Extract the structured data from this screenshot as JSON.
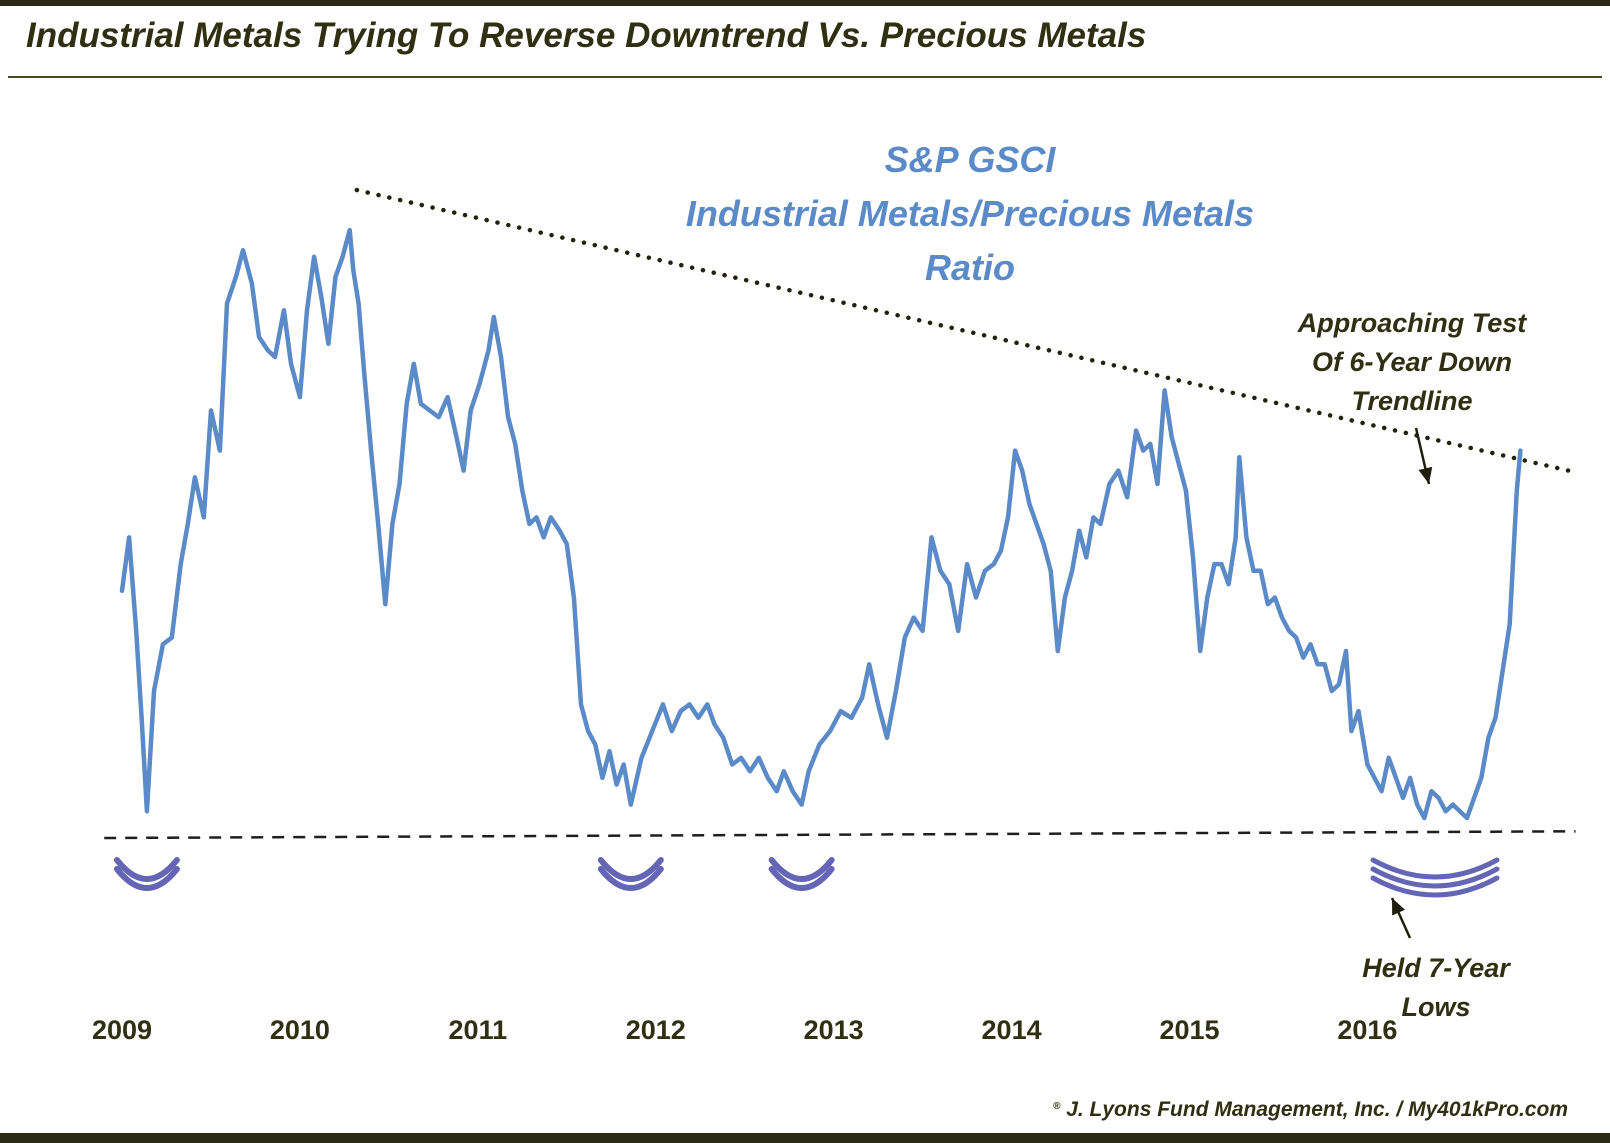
{
  "title": "Industrial Metals Trying To Reverse Downtrend Vs. Precious Metals",
  "credit": {
    "mark": "®",
    "text": "J. Lyons Fund Management, Inc. / My401kPro.com"
  },
  "colors": {
    "line": "#5b8ac8",
    "text": "#2f2f12",
    "arc": "#4a4aa8",
    "border": "#2a2a14"
  },
  "chart_data": {
    "type": "line",
    "title": "S&P GSCI Industrial Metals/Precious Metals Ratio",
    "title_lines": [
      "S&P GSCI",
      "Industrial Metals/Precious Metals",
      "Ratio"
    ],
    "xlabel": "",
    "ylabel": "",
    "x_ticks": [
      "2009",
      "2010",
      "2011",
      "2012",
      "2013",
      "2014",
      "2015",
      "2016"
    ],
    "x_range": [
      2009.0,
      2017.15
    ],
    "y_range": [
      0,
      100
    ],
    "grid": false,
    "series": [
      {
        "name": "Industrial Metals/Precious Metals Ratio",
        "points": [
          [
            2009.0,
            37.0
          ],
          [
            2009.04,
            45.0
          ],
          [
            2009.08,
            31.0
          ],
          [
            2009.11,
            18.0
          ],
          [
            2009.14,
            4.0
          ],
          [
            2009.18,
            22.0
          ],
          [
            2009.23,
            29.0
          ],
          [
            2009.28,
            30.0
          ],
          [
            2009.33,
            41.0
          ],
          [
            2009.37,
            47.0
          ],
          [
            2009.41,
            54.0
          ],
          [
            2009.46,
            48.0
          ],
          [
            2009.5,
            64.0
          ],
          [
            2009.55,
            58.0
          ],
          [
            2009.59,
            80.0
          ],
          [
            2009.64,
            84.0
          ],
          [
            2009.68,
            88.0
          ],
          [
            2009.73,
            83.0
          ],
          [
            2009.77,
            75.0
          ],
          [
            2009.82,
            73.0
          ],
          [
            2009.86,
            72.0
          ],
          [
            2009.91,
            79.0
          ],
          [
            2009.95,
            71.0
          ],
          [
            2010.0,
            66.0
          ],
          [
            2010.04,
            79.0
          ],
          [
            2010.08,
            87.0
          ],
          [
            2010.12,
            81.0
          ],
          [
            2010.16,
            74.0
          ],
          [
            2010.2,
            84.0
          ],
          [
            2010.24,
            87.0
          ],
          [
            2010.28,
            91.0
          ],
          [
            2010.3,
            85.0
          ],
          [
            2010.33,
            80.0
          ],
          [
            2010.36,
            70.0
          ],
          [
            2010.4,
            58.0
          ],
          [
            2010.44,
            47.0
          ],
          [
            2010.48,
            35.0
          ],
          [
            2010.52,
            47.0
          ],
          [
            2010.56,
            53.0
          ],
          [
            2010.6,
            65.0
          ],
          [
            2010.64,
            71.0
          ],
          [
            2010.68,
            65.0
          ],
          [
            2010.73,
            64.0
          ],
          [
            2010.78,
            63.0
          ],
          [
            2010.83,
            66.0
          ],
          [
            2010.88,
            60.0
          ],
          [
            2010.92,
            55.0
          ],
          [
            2010.96,
            64.0
          ],
          [
            2011.01,
            68.0
          ],
          [
            2011.06,
            73.0
          ],
          [
            2011.09,
            78.0
          ],
          [
            2011.13,
            72.0
          ],
          [
            2011.17,
            63.0
          ],
          [
            2011.21,
            59.0
          ],
          [
            2011.25,
            52.0
          ],
          [
            2011.29,
            47.0
          ],
          [
            2011.33,
            48.0
          ],
          [
            2011.37,
            45.0
          ],
          [
            2011.41,
            48.0
          ],
          [
            2011.46,
            46.0
          ],
          [
            2011.5,
            44.0
          ],
          [
            2011.54,
            36.0
          ],
          [
            2011.58,
            20.0
          ],
          [
            2011.62,
            16.0
          ],
          [
            2011.66,
            14.0
          ],
          [
            2011.7,
            9.0
          ],
          [
            2011.74,
            13.0
          ],
          [
            2011.78,
            8.0
          ],
          [
            2011.82,
            11.0
          ],
          [
            2011.86,
            5.0
          ],
          [
            2011.92,
            12.0
          ],
          [
            2011.98,
            16.0
          ],
          [
            2012.04,
            20.0
          ],
          [
            2012.09,
            16.0
          ],
          [
            2012.14,
            19.0
          ],
          [
            2012.19,
            20.0
          ],
          [
            2012.24,
            18.0
          ],
          [
            2012.29,
            20.0
          ],
          [
            2012.33,
            17.0
          ],
          [
            2012.38,
            15.0
          ],
          [
            2012.43,
            11.0
          ],
          [
            2012.48,
            12.0
          ],
          [
            2012.53,
            10.0
          ],
          [
            2012.58,
            12.0
          ],
          [
            2012.63,
            9.0
          ],
          [
            2012.68,
            7.0
          ],
          [
            2012.72,
            10.0
          ],
          [
            2012.77,
            7.0
          ],
          [
            2012.82,
            5.0
          ],
          [
            2012.86,
            10.0
          ],
          [
            2012.92,
            14.0
          ],
          [
            2012.98,
            16.0
          ],
          [
            2013.04,
            19.0
          ],
          [
            2013.1,
            18.0
          ],
          [
            2013.16,
            21.0
          ],
          [
            2013.2,
            26.0
          ],
          [
            2013.25,
            20.0
          ],
          [
            2013.3,
            15.0
          ],
          [
            2013.35,
            22.0
          ],
          [
            2013.4,
            30.0
          ],
          [
            2013.45,
            33.0
          ],
          [
            2013.5,
            31.0
          ],
          [
            2013.55,
            45.0
          ],
          [
            2013.6,
            40.0
          ],
          [
            2013.65,
            38.0
          ],
          [
            2013.7,
            31.0
          ],
          [
            2013.75,
            41.0
          ],
          [
            2013.8,
            36.0
          ],
          [
            2013.85,
            40.0
          ],
          [
            2013.9,
            41.0
          ],
          [
            2013.94,
            43.0
          ],
          [
            2013.98,
            48.0
          ],
          [
            2014.02,
            58.0
          ],
          [
            2014.06,
            55.0
          ],
          [
            2014.1,
            50.0
          ],
          [
            2014.14,
            47.0
          ],
          [
            2014.18,
            44.0
          ],
          [
            2014.22,
            40.0
          ],
          [
            2014.26,
            28.0
          ],
          [
            2014.3,
            36.0
          ],
          [
            2014.34,
            40.0
          ],
          [
            2014.38,
            46.0
          ],
          [
            2014.42,
            42.0
          ],
          [
            2014.46,
            48.0
          ],
          [
            2014.5,
            47.0
          ],
          [
            2014.55,
            53.0
          ],
          [
            2014.6,
            55.0
          ],
          [
            2014.65,
            51.0
          ],
          [
            2014.7,
            61.0
          ],
          [
            2014.74,
            58.0
          ],
          [
            2014.78,
            59.0
          ],
          [
            2014.82,
            53.0
          ],
          [
            2014.86,
            67.0
          ],
          [
            2014.9,
            60.0
          ],
          [
            2014.94,
            56.0
          ],
          [
            2014.98,
            52.0
          ],
          [
            2015.02,
            42.0
          ],
          [
            2015.06,
            28.0
          ],
          [
            2015.1,
            36.0
          ],
          [
            2015.14,
            41.0
          ],
          [
            2015.18,
            41.0
          ],
          [
            2015.22,
            38.0
          ],
          [
            2015.26,
            45.0
          ],
          [
            2015.28,
            57.0
          ],
          [
            2015.32,
            45.0
          ],
          [
            2015.36,
            40.0
          ],
          [
            2015.4,
            40.0
          ],
          [
            2015.44,
            35.0
          ],
          [
            2015.48,
            36.0
          ],
          [
            2015.52,
            33.0
          ],
          [
            2015.56,
            31.0
          ],
          [
            2015.6,
            30.0
          ],
          [
            2015.64,
            27.0
          ],
          [
            2015.68,
            29.0
          ],
          [
            2015.72,
            26.0
          ],
          [
            2015.76,
            26.0
          ],
          [
            2015.8,
            22.0
          ],
          [
            2015.84,
            23.0
          ],
          [
            2015.88,
            28.0
          ],
          [
            2015.91,
            16.0
          ],
          [
            2015.95,
            19.0
          ],
          [
            2016.0,
            11.0
          ],
          [
            2016.04,
            9.0
          ],
          [
            2016.08,
            7.0
          ],
          [
            2016.12,
            12.0
          ],
          [
            2016.16,
            9.0
          ],
          [
            2016.2,
            6.0
          ],
          [
            2016.24,
            9.0
          ],
          [
            2016.28,
            5.0
          ],
          [
            2016.32,
            3.0
          ],
          [
            2016.36,
            7.0
          ],
          [
            2016.4,
            6.0
          ],
          [
            2016.44,
            4.0
          ],
          [
            2016.48,
            5.0
          ],
          [
            2016.52,
            4.0
          ],
          [
            2016.56,
            3.0
          ],
          [
            2016.6,
            6.0
          ],
          [
            2016.64,
            9.0
          ],
          [
            2016.68,
            15.0
          ],
          [
            2016.72,
            18.0
          ],
          [
            2016.76,
            25.0
          ],
          [
            2016.8,
            32.0
          ],
          [
            2016.84,
            52.0
          ],
          [
            2016.86,
            58.0
          ]
        ]
      }
    ],
    "trendlines": [
      {
        "name": "down-trendline",
        "style": "dotted",
        "points": [
          [
            2010.32,
            97.0
          ],
          [
            2017.13,
            55.0
          ]
        ]
      },
      {
        "name": "support-line",
        "style": "dashed",
        "points": [
          [
            2008.9,
            0.0
          ],
          [
            2017.17,
            1.0
          ]
        ]
      }
    ],
    "low_markers": [
      {
        "name": "low-2009",
        "x": 2009.14
      },
      {
        "name": "low-2011",
        "x": 2011.86
      },
      {
        "name": "low-2012",
        "x": 2012.82
      },
      {
        "name": "low-2016",
        "x": 2016.38
      }
    ],
    "annotations": [
      {
        "name": "trendline-annotation",
        "lines": [
          "Approaching Test",
          "Of 6-Year Down",
          "Trendline"
        ],
        "target": [
          2016.88,
          59.0
        ]
      },
      {
        "name": "lows-annotation",
        "lines": [
          "Held 7-Year",
          "Lows"
        ],
        "target": [
          2016.6,
          -7.0
        ]
      }
    ]
  }
}
